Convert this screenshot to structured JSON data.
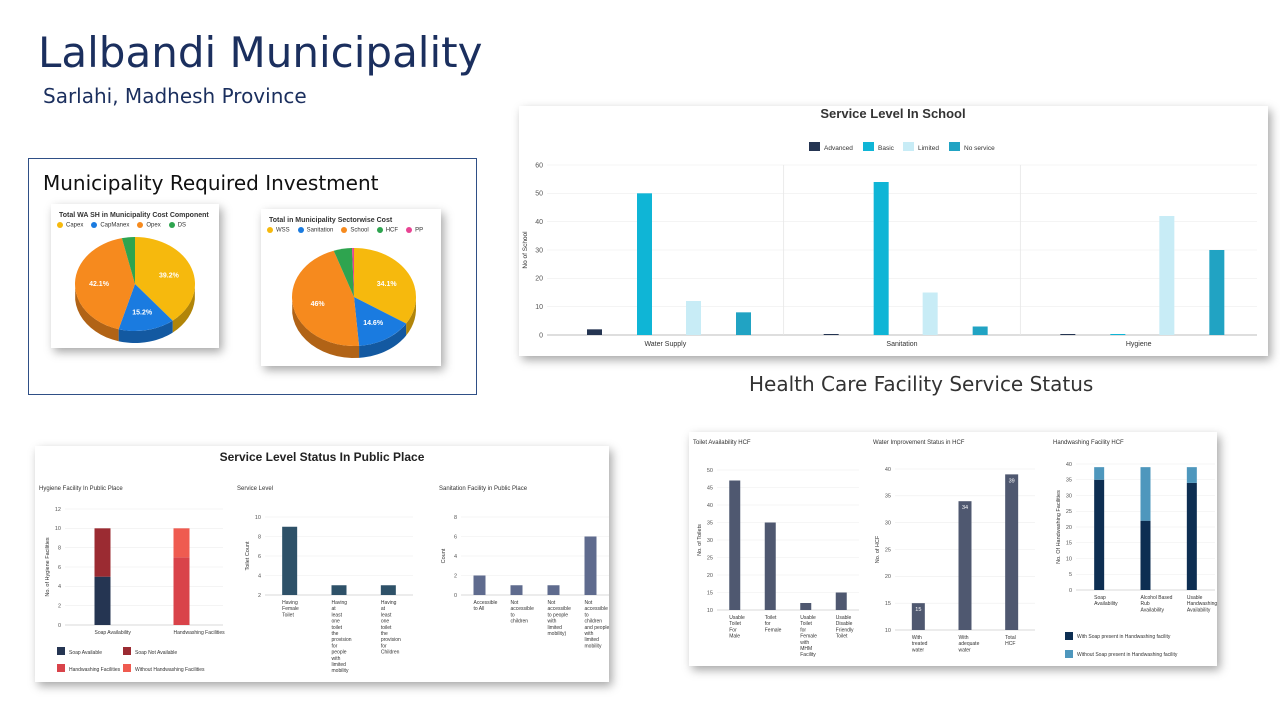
{
  "page": {
    "title": "Lalbandi Municipality",
    "subtitle": "Sarlahi, Madhesh Province",
    "investment_heading": "Municipality Required Investment",
    "hcf_heading": "Health Care Facility Service Status"
  },
  "chart_data": [
    {
      "id": "wash-cost",
      "type": "pie",
      "title": "Total WA SH in Municipality Cost Component",
      "categories": [
        "Capex",
        "CapManex",
        "Opex",
        "DS"
      ],
      "values": [
        39.2,
        15.2,
        42.1,
        3.5
      ],
      "data_labels": [
        "39.2%",
        "15.2%",
        "42.1%",
        ""
      ],
      "colors": [
        "#f6b90d",
        "#1a7be0",
        "#f68a1e",
        "#2ea44f"
      ]
    },
    {
      "id": "sector-cost",
      "type": "pie",
      "title": "Total in Municipality Sectorwise Cost",
      "categories": [
        "WSS",
        "Sanitation",
        "School",
        "HCF",
        "PP"
      ],
      "values": [
        34.1,
        14.6,
        46,
        4.8,
        0.5
      ],
      "data_labels": [
        "34.1%",
        "14.6%",
        "46%",
        "",
        ""
      ],
      "colors": [
        "#f6b90d",
        "#1a7be0",
        "#f68a1e",
        "#2ea44f",
        "#e84393"
      ]
    },
    {
      "id": "school",
      "type": "bar",
      "title": "Service Level In School",
      "categories": [
        "Water Supply",
        "Sanitation",
        "Hygiene"
      ],
      "series": [
        {
          "name": "Advanced",
          "values": [
            2,
            0,
            0
          ],
          "color": "#253552"
        },
        {
          "name": "Basic",
          "values": [
            50,
            54,
            0
          ],
          "color": "#0fb5d6"
        },
        {
          "name": "Limited",
          "values": [
            12,
            15,
            42
          ],
          "color": "#c8ecf6"
        },
        {
          "name": "No service",
          "values": [
            8,
            3,
            30
          ],
          "color": "#21a3c3"
        }
      ],
      "ylabel": "No of School",
      "ylim": [
        0,
        60
      ],
      "yticks": [
        "0",
        "10",
        "20",
        "30",
        "40",
        "50",
        "60"
      ]
    },
    {
      "id": "public-hygiene",
      "type": "bar",
      "title": "Hygiene Facility In Public Place",
      "categories": [
        "Soap Availability",
        "Handwashing Facilities"
      ],
      "series": [
        {
          "name": "Soap Available",
          "values": [
            5,
            0
          ],
          "color": "#253552"
        },
        {
          "name": "Soap Not Available",
          "values": [
            5,
            0
          ],
          "color": "#9b2b32"
        },
        {
          "name": "Handwashing Facilities",
          "values": [
            0,
            7
          ],
          "color": "#d9434a"
        },
        {
          "name": "Without Handwashing Facilities",
          "values": [
            0,
            3
          ],
          "color": "#ef5b50"
        }
      ],
      "ylabel": "No. of Hygiene Facilities",
      "ylim": [
        0,
        12
      ],
      "yticks": [
        "0",
        "2",
        "4",
        "6",
        "8",
        "10",
        "12"
      ]
    },
    {
      "id": "public-service",
      "type": "bar",
      "title": "Service Level",
      "categories": [
        "Having Female Toilet",
        "Having at least one toilet the provision for people with limited mobility",
        "Having at least one toilet the provision for Children"
      ],
      "values": [
        9,
        3,
        3
      ],
      "color": "#2e5168",
      "ylabel": "Toilet Count",
      "ylim": [
        2,
        10
      ],
      "yticks": [
        "2",
        "4",
        "6",
        "8",
        "10"
      ]
    },
    {
      "id": "public-sanitation",
      "type": "bar",
      "title": "Sanitation Facility in Public Place",
      "categories": [
        "Accessible to All",
        "Not accessible to children",
        "Not accessible to people with limited mobility)",
        "Not accessible to children and people with limited mobility"
      ],
      "values": [
        2,
        1,
        1,
        6
      ],
      "color": "#5f6b8e",
      "ylabel": "Count",
      "ylim": [
        0,
        8
      ],
      "yticks": [
        "0",
        "2",
        "4",
        "6",
        "8"
      ]
    },
    {
      "id": "hcf-toilet",
      "type": "bar",
      "title": "Toilet Availability HCF",
      "categories": [
        "Usable Toilet For Male",
        "Toilet for Female",
        "Usable Toilet for Female with MHM Facility",
        "Usable Disable Friendly Toilet"
      ],
      "values": [
        47,
        35,
        12,
        15
      ],
      "color": "#4f5870",
      "ylabel": "No. of Toilets",
      "ylim": [
        10,
        50
      ],
      "yticks": [
        "10",
        "15",
        "20",
        "25",
        "30",
        "35",
        "40",
        "45",
        "50"
      ]
    },
    {
      "id": "hcf-water",
      "type": "bar",
      "title": "Water Improvement Status in HCF",
      "categories": [
        "With treated water",
        "With adequate water",
        "Total HCF"
      ],
      "values": [
        15,
        34,
        39
      ],
      "data_labels": [
        "15",
        "34",
        "39"
      ],
      "color": "#4f5870",
      "ylabel": "No. of HCF",
      "ylim": [
        10,
        40
      ],
      "yticks": [
        "10",
        "15",
        "20",
        "25",
        "30",
        "35",
        "40"
      ]
    },
    {
      "id": "hcf-handwash",
      "type": "bar",
      "title": "Handwashing Facility HCF",
      "categories": [
        "Soap Availability",
        "Alcohol Based Rub Availability",
        "Usable Handwashing Availability"
      ],
      "series": [
        {
          "name": "With Soap present in Handwashing facility",
          "values": [
            35,
            22,
            34
          ],
          "color": "#0d2e52"
        },
        {
          "name": "Without Soap present in Handwashing facility",
          "values": [
            4,
            17,
            5
          ],
          "color": "#4e97bd"
        }
      ],
      "ylabel": "No. Of Handwashing Facilities",
      "ylim": [
        0,
        40
      ],
      "yticks": [
        "0",
        "5",
        "10",
        "15",
        "20",
        "25",
        "30",
        "35",
        "40"
      ]
    }
  ],
  "public_place": {
    "heading": "Service Level Status In Public Place"
  }
}
